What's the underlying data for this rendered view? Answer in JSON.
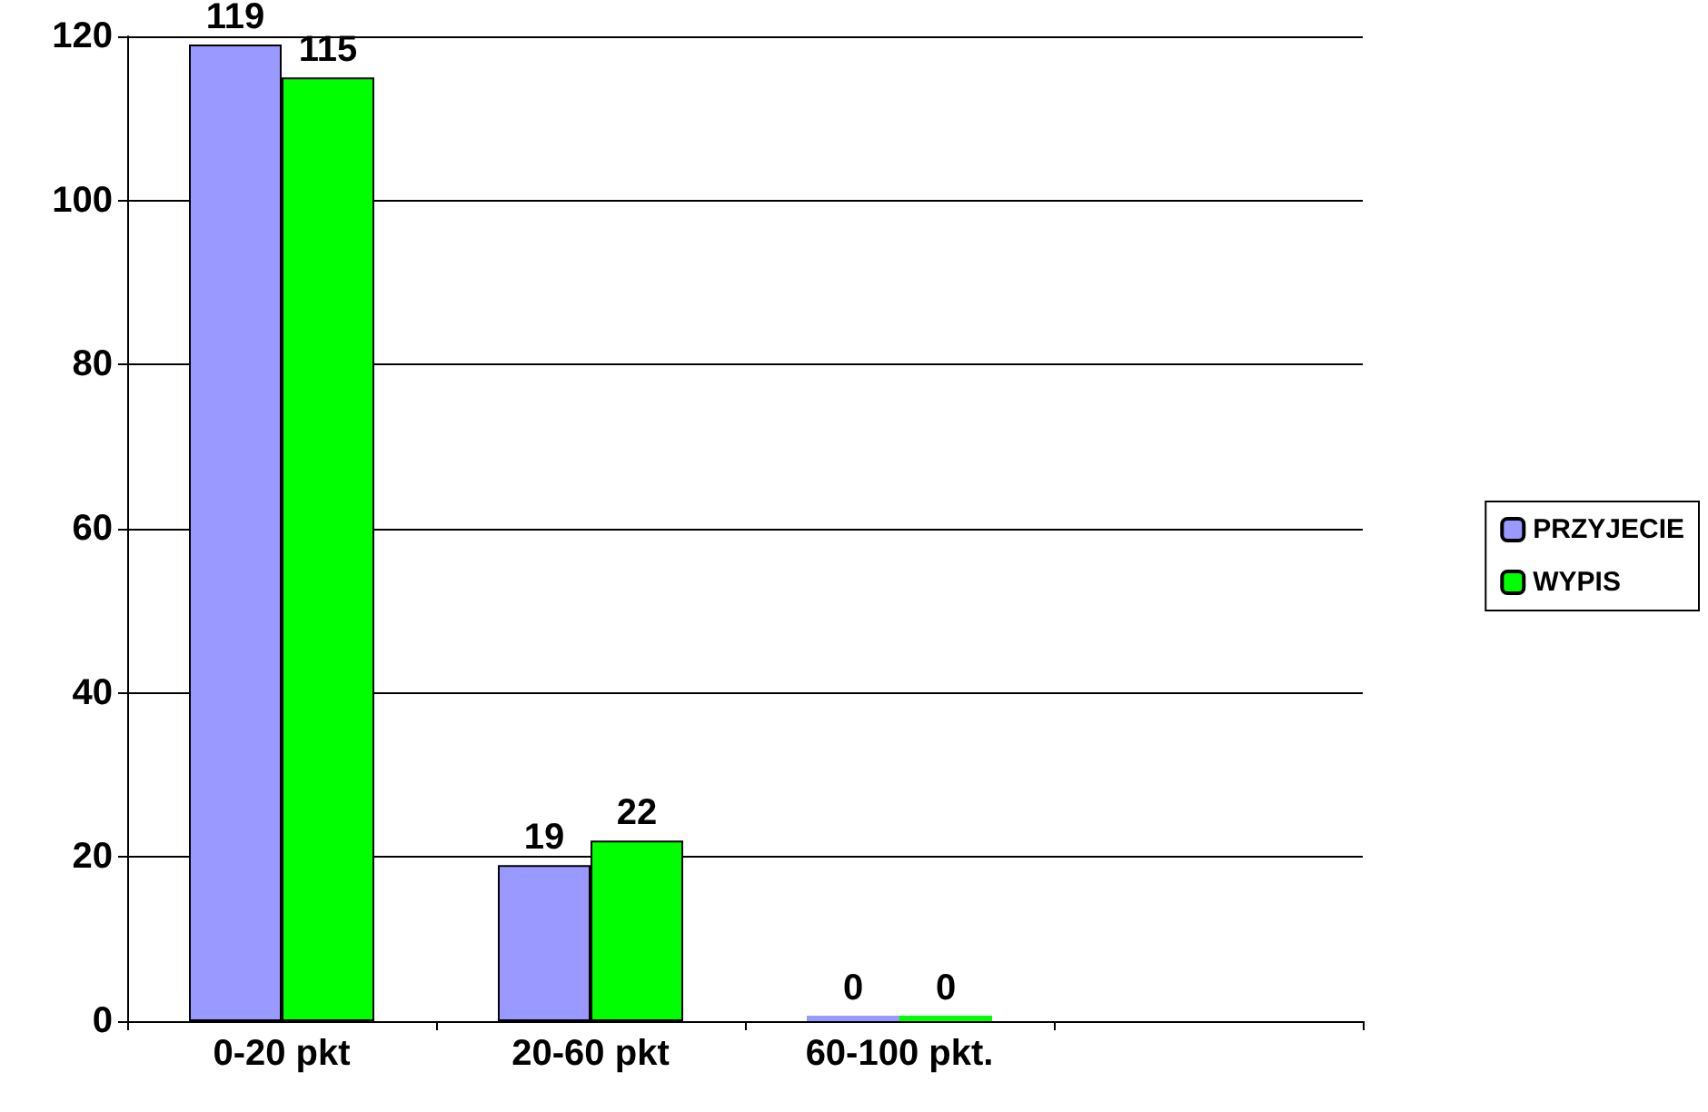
{
  "chart_data": {
    "type": "bar",
    "categories": [
      "0-20 pkt",
      "20-60 pkt",
      "60-100 pkt.",
      null
    ],
    "series": [
      {
        "name": "PRZYJECIE",
        "color": "#9999ff",
        "values": [
          119,
          19,
          0,
          null
        ]
      },
      {
        "name": "WYPIS",
        "color": "#00ff00",
        "values": [
          115,
          22,
          0,
          null
        ]
      }
    ],
    "ylim": [
      0,
      120
    ],
    "yticks": [
      0,
      20,
      40,
      60,
      80,
      100,
      120
    ],
    "grid": "y",
    "legend": "right",
    "data_labels": true
  }
}
